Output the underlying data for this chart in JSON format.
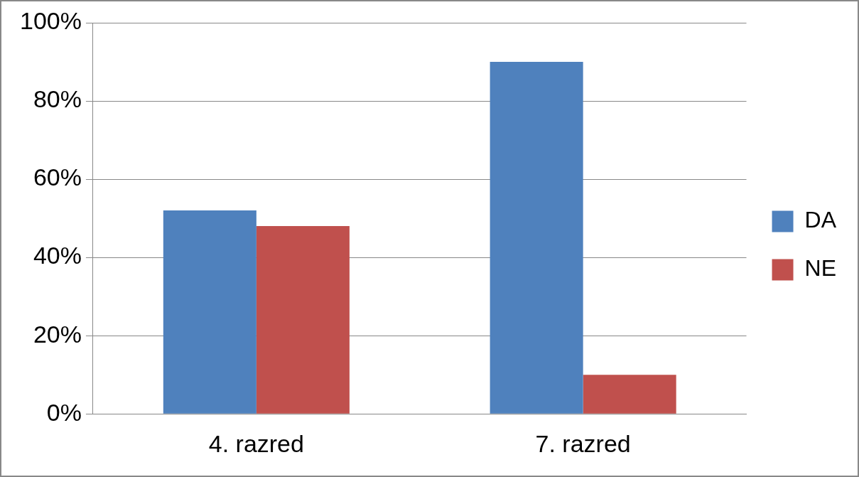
{
  "chart_data": {
    "type": "bar",
    "categories": [
      "4. razred",
      "7. razred"
    ],
    "series": [
      {
        "name": "DA",
        "color": "#4f81bd",
        "values": [
          52,
          90
        ]
      },
      {
        "name": "NE",
        "color": "#c0504d",
        "values": [
          48,
          10
        ]
      }
    ],
    "ylim": [
      0,
      100
    ],
    "yticks": [
      {
        "value": 0,
        "label": "0%"
      },
      {
        "value": 20,
        "label": "20%"
      },
      {
        "value": 40,
        "label": "40%"
      },
      {
        "value": 60,
        "label": "60%"
      },
      {
        "value": 80,
        "label": "80%"
      },
      {
        "value": 100,
        "label": "100%"
      }
    ],
    "grid": "y",
    "legend": "right"
  }
}
